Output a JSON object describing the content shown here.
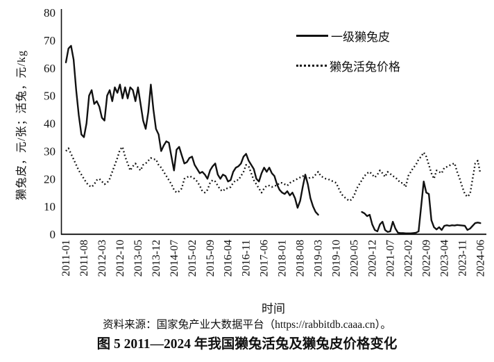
{
  "chart_data": {
    "type": "line",
    "title": "",
    "xlabel": "时间",
    "ylabel": "獭兔皮，元/张；活兔，元/kg",
    "ylim": [
      0,
      80
    ],
    "y_ticks": [
      0,
      10,
      20,
      30,
      40,
      50,
      60,
      70,
      80
    ],
    "grid": false,
    "legend_position": "inside-top-right",
    "x_frequency": "monthly",
    "x_tick_labels": [
      "2011-01",
      "2011-08",
      "2012-03",
      "2012-10",
      "2013-05",
      "2013-12",
      "2014-07",
      "2015-02",
      "2015-09",
      "2016-04",
      "2016-11",
      "2017-06",
      "2018-01",
      "2018-08",
      "2019-03",
      "2019-10",
      "2020-05",
      "2020-12",
      "2021-07",
      "2022-02",
      "2022-09",
      "2023-04",
      "2023-11",
      "2024-06"
    ],
    "x": [
      "2011-01",
      "2011-02",
      "2011-03",
      "2011-04",
      "2011-05",
      "2011-06",
      "2011-07",
      "2011-08",
      "2011-09",
      "2011-10",
      "2011-11",
      "2011-12",
      "2012-01",
      "2012-02",
      "2012-03",
      "2012-04",
      "2012-05",
      "2012-06",
      "2012-07",
      "2012-08",
      "2012-09",
      "2012-10",
      "2012-11",
      "2012-12",
      "2013-01",
      "2013-02",
      "2013-03",
      "2013-04",
      "2013-05",
      "2013-06",
      "2013-07",
      "2013-08",
      "2013-09",
      "2013-10",
      "2013-11",
      "2013-12",
      "2014-01",
      "2014-02",
      "2014-03",
      "2014-04",
      "2014-05",
      "2014-06",
      "2014-07",
      "2014-08",
      "2014-09",
      "2014-10",
      "2014-11",
      "2014-12",
      "2015-01",
      "2015-02",
      "2015-03",
      "2015-04",
      "2015-05",
      "2015-06",
      "2015-07",
      "2015-08",
      "2015-09",
      "2015-10",
      "2015-11",
      "2015-12",
      "2016-01",
      "2016-02",
      "2016-03",
      "2016-04",
      "2016-05",
      "2016-06",
      "2016-07",
      "2016-08",
      "2016-09",
      "2016-10",
      "2016-11",
      "2016-12",
      "2017-01",
      "2017-02",
      "2017-03",
      "2017-04",
      "2017-05",
      "2017-06",
      "2017-07",
      "2017-08",
      "2017-09",
      "2017-10",
      "2017-11",
      "2017-12",
      "2018-01",
      "2018-02",
      "2018-03",
      "2018-04",
      "2018-05",
      "2018-06",
      "2018-07",
      "2018-08",
      "2018-09",
      "2018-10",
      "2018-11",
      "2018-12",
      "2019-01",
      "2019-02",
      "2019-03",
      "2019-04",
      "2019-05",
      "2019-06",
      "2019-07",
      "2019-08",
      "2019-09",
      "2019-10",
      "2019-11",
      "2019-12",
      "2020-01",
      "2020-02",
      "2020-03",
      "2020-04",
      "2020-05",
      "2020-06",
      "2020-07",
      "2020-08",
      "2020-09",
      "2020-10",
      "2020-11",
      "2020-12",
      "2021-01",
      "2021-02",
      "2021-03",
      "2021-04",
      "2021-05",
      "2021-06",
      "2021-07",
      "2021-08",
      "2021-09",
      "2021-10",
      "2021-11",
      "2021-12",
      "2022-01",
      "2022-02",
      "2022-03",
      "2022-04",
      "2022-05",
      "2022-06",
      "2022-07",
      "2022-08",
      "2022-09",
      "2022-10",
      "2022-11",
      "2022-12",
      "2023-01",
      "2023-02",
      "2023-03",
      "2023-04",
      "2023-05",
      "2023-06",
      "2023-07",
      "2023-08",
      "2023-09",
      "2023-10",
      "2023-11",
      "2023-12",
      "2024-01",
      "2024-02",
      "2024-03",
      "2024-04",
      "2024-05",
      "2024-06"
    ],
    "series": [
      {
        "name": "一级獭兔皮",
        "style": "solid",
        "color": "#111111",
        "values": [
          62,
          67,
          68,
          63,
          52,
          43,
          36,
          35,
          40,
          50,
          52,
          47,
          48,
          46,
          42,
          41,
          50,
          52,
          48,
          53,
          51,
          54,
          49,
          53,
          49,
          53,
          52,
          48,
          53,
          47,
          41,
          38,
          44,
          54,
          45,
          38,
          36,
          30,
          32,
          33.5,
          33,
          28,
          23,
          30.5,
          31.5,
          28.5,
          25.5,
          26,
          27.5,
          28,
          25,
          23.5,
          22,
          22.5,
          21.5,
          20,
          23,
          24.5,
          25.5,
          21.5,
          20,
          21.5,
          21,
          19,
          19.5,
          22.5,
          24,
          24.5,
          25.5,
          28,
          29,
          26.5,
          25,
          23.5,
          20,
          19,
          22,
          24,
          22.5,
          24,
          22,
          21,
          18,
          16,
          15,
          14.5,
          15.5,
          14,
          15,
          13,
          9.5,
          12,
          17,
          21.5,
          18,
          13,
          10,
          8,
          7,
          null,
          null,
          null,
          null,
          null,
          null,
          null,
          null,
          null,
          null,
          null,
          null,
          null,
          null,
          null,
          null,
          8,
          7.5,
          6.5,
          7,
          3.5,
          1.5,
          1,
          3.5,
          4.5,
          1.5,
          0.8,
          1,
          4.5,
          2,
          0.5,
          0.4,
          0.4,
          0.3,
          0.3,
          0.3,
          0.4,
          0.5,
          1,
          10,
          19,
          15,
          14.5,
          5,
          2.5,
          1.7,
          2.5,
          1.5,
          3,
          3.2,
          3,
          3.2,
          3.1,
          3.3,
          3.2,
          3.1,
          3,
          1.5,
          2,
          3,
          4,
          4.2,
          4
        ]
      },
      {
        "name": "獭兔活兔价格",
        "style": "dotted",
        "color": "#111111",
        "values": [
          30,
          31,
          29,
          27,
          25,
          23,
          21.5,
          20,
          18.5,
          17.5,
          17,
          18,
          19.5,
          20,
          19,
          18,
          18.5,
          20,
          22.5,
          25,
          27.5,
          30.5,
          31.5,
          28,
          25.5,
          23,
          24.5,
          25.5,
          24,
          23,
          25,
          25.5,
          26.5,
          27.5,
          27,
          27,
          25,
          24,
          22.5,
          21,
          19.5,
          18,
          16,
          15,
          15.5,
          16.5,
          20,
          20.5,
          21,
          20.5,
          20,
          19,
          17.5,
          15.5,
          15,
          16,
          18.5,
          19.5,
          19,
          17.5,
          16,
          15.5,
          16.5,
          16.5,
          17,
          18.5,
          19.5,
          19.5,
          21,
          22.5,
          25,
          24.5,
          22,
          19.5,
          18,
          16.5,
          15,
          16.5,
          17.5,
          17.5,
          17,
          17.5,
          17.5,
          18.5,
          18.5,
          18,
          17.5,
          18.5,
          19,
          19.5,
          20,
          20.5,
          21,
          20.5,
          20,
          20.5,
          20.5,
          21.5,
          22.5,
          21,
          20.5,
          20,
          19.8,
          19.3,
          19,
          18.5,
          16.5,
          14.5,
          13.5,
          12.8,
          12,
          12.5,
          14,
          16.5,
          18,
          19.5,
          21,
          22,
          22.5,
          21.5,
          20.5,
          21.5,
          23,
          22,
          20.7,
          22.5,
          21.8,
          21,
          20.5,
          19.5,
          18.5,
          18.5,
          17,
          21,
          22.5,
          24,
          25,
          27,
          28,
          29.5,
          28,
          25,
          22,
          20,
          23,
          22.5,
          22,
          24,
          24.3,
          24.8,
          25.2,
          25.6,
          22.5,
          20,
          17,
          14.5,
          13.5,
          14.5,
          20,
          25.5,
          26.5,
          22
        ]
      }
    ]
  },
  "footer": {
    "source": "资料来源：国家兔产业大数据平台（https://rabbitdb.caaa.cn）。",
    "caption": "图 5 2011—2024 年我国獭兔活兔及獭兔皮价格变化"
  }
}
